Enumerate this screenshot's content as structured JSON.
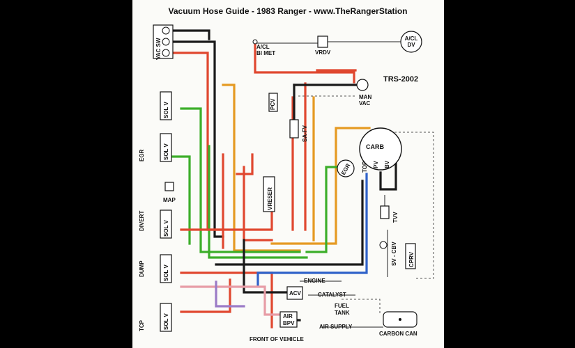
{
  "title": "Vacuum Hose Guide - 1983 Ranger - www.TheRangerStation",
  "code": "TRS-2002",
  "labels": {
    "vac_sw": "VAC SW",
    "acl_bimet": "A/CL",
    "bimet": "BI MET",
    "vrdv": "VRDV",
    "acl_dv_a": "A/CL",
    "acl_dv_b": "DV",
    "pcv": "PCV",
    "man": "MAN",
    "vac": "VAC",
    "sa_fv": "SA-FV",
    "carb": "CARB",
    "egr_valve": "EGR",
    "top": "TOP",
    "pv": "PV",
    "bv": "BV",
    "sol_v": "SOL V",
    "egr": "EGR",
    "map": "MAP",
    "divert": "DIVERT",
    "dump": "DUMP",
    "tcp": "TCP",
    "vreser": "VRESER",
    "tvv": "TVV",
    "sv_cbv": "SV - CBV",
    "cprv": "CPRV",
    "engine": "ENGINE",
    "catalyst": "CATALYST",
    "acv": "ACV",
    "fuel": "FUEL",
    "tank": "TANK",
    "air": "AIR",
    "bpv": "BPV",
    "air_supply": "AIR SUPPLY",
    "carbon_can": "CARBON CAN",
    "front": "FRONT OF VEHICLE"
  },
  "colors": {
    "red": "#e0472f",
    "black": "#1a1a1a",
    "orange": "#e59a22",
    "green": "#3cae2a",
    "blue": "#2f62c9",
    "pink": "#e79ca6",
    "purple": "#9b7bc7"
  }
}
